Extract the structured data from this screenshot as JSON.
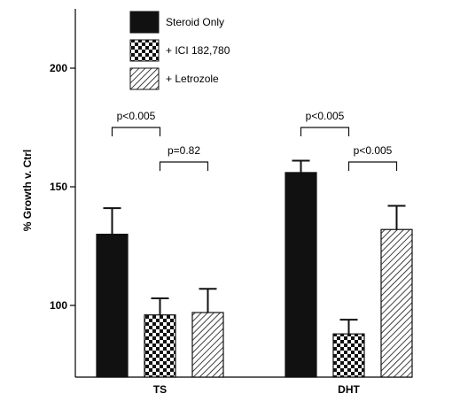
{
  "chart_data": {
    "type": "bar",
    "ylabel": "% Growth v. Ctrl",
    "xlabel": "",
    "ylim": [
      90,
      215
    ],
    "yticks": [
      100,
      150,
      200
    ],
    "categories": [
      "TS",
      "DHT"
    ],
    "series": [
      {
        "name": "Steroid Only",
        "pattern": "solid",
        "values": [
          130,
          156
        ],
        "errors": [
          11,
          5
        ]
      },
      {
        "name": "+ ICI 182,780",
        "pattern": "checker",
        "values": [
          96,
          88
        ],
        "errors": [
          7,
          6
        ]
      },
      {
        "name": "+ Letrozole",
        "pattern": "hatch",
        "values": [
          97,
          132
        ],
        "errors": [
          10,
          10
        ]
      }
    ],
    "annotations": [
      {
        "text": "p<0.005",
        "category": 0,
        "from_series": 0,
        "to_series": 1,
        "level": 1
      },
      {
        "text": "p=0.82",
        "category": 0,
        "from_series": 1,
        "to_series": 2,
        "level": 0
      },
      {
        "text": "p<0.005",
        "category": 1,
        "from_series": 0,
        "to_series": 1,
        "level": 1
      },
      {
        "text": "p<0.005",
        "category": 1,
        "from_series": 1,
        "to_series": 2,
        "level": 0
      }
    ],
    "legend_position": "top-center",
    "grid": false,
    "colors": {
      "bar": "#111111",
      "axis": "#000000",
      "background": "#ffffff"
    }
  }
}
